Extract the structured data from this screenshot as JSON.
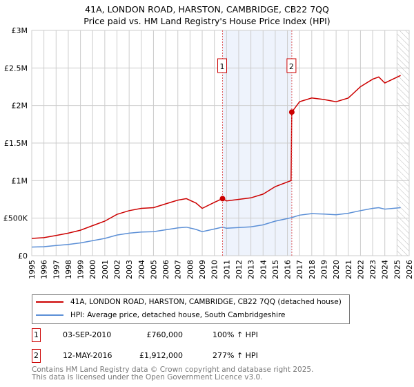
{
  "chart_data": {
    "type": "line",
    "title": "41A, LONDON ROAD, HARSTON, CAMBRIDGE, CB22 7QQ",
    "subtitle": "Price paid vs. HM Land Registry's House Price Index (HPI)",
    "xlim": [
      1995,
      2026
    ],
    "ylim": [
      0,
      3000000
    ],
    "x_ticks": [
      "1995",
      "1996",
      "1997",
      "1998",
      "1999",
      "2000",
      "2001",
      "2002",
      "2003",
      "2004",
      "2005",
      "2006",
      "2007",
      "2008",
      "2009",
      "2010",
      "2011",
      "2012",
      "2013",
      "2014",
      "2015",
      "2016",
      "2017",
      "2018",
      "2019",
      "2020",
      "2021",
      "2022",
      "2023",
      "2024",
      "2025",
      "2026"
    ],
    "y_ticks": [
      {
        "v": 0,
        "label": "£0"
      },
      {
        "v": 500000,
        "label": "£500K"
      },
      {
        "v": 1000000,
        "label": "£1M"
      },
      {
        "v": 1500000,
        "label": "£1.5M"
      },
      {
        "v": 2000000,
        "label": "£2M"
      },
      {
        "v": 2500000,
        "label": "£2.5M"
      },
      {
        "v": 3000000,
        "label": "£3M"
      }
    ],
    "grid": true,
    "shaded_range": [
      2010.67,
      2016.36
    ],
    "hatched_from": 2025.0,
    "series": [
      {
        "name": "41A, LONDON ROAD, HARSTON, CAMBRIDGE, CB22 7QQ (detached house)",
        "color": "#cc0000",
        "x": [
          1995,
          1996,
          1997,
          1998,
          1999,
          2000,
          2001,
          2002,
          2003,
          2004,
          2005,
          2006,
          2007,
          2007.7,
          2008.5,
          2009,
          2010,
          2010.67,
          2011,
          2012,
          2013,
          2014,
          2015,
          2016.3,
          2016.36,
          2017,
          2018,
          2019,
          2020,
          2021,
          2022,
          2023,
          2023.5,
          2024,
          2025.3
        ],
        "y": [
          230000,
          240000,
          270000,
          300000,
          340000,
          400000,
          460000,
          550000,
          600000,
          630000,
          640000,
          690000,
          740000,
          760000,
          700000,
          630000,
          710000,
          760000,
          730000,
          750000,
          770000,
          820000,
          920000,
          1000000,
          1912000,
          2050000,
          2100000,
          2080000,
          2050000,
          2100000,
          2250000,
          2350000,
          2380000,
          2300000,
          2400000
        ]
      },
      {
        "name": "HPI: Average price, detached house, South Cambridgeshire",
        "color": "#5b8fd6",
        "x": [
          1995,
          1996,
          1997,
          1998,
          1999,
          2000,
          2001,
          2002,
          2003,
          2004,
          2005,
          2006,
          2007,
          2007.7,
          2008.5,
          2009,
          2010,
          2010.67,
          2011,
          2012,
          2013,
          2014,
          2015,
          2016.3,
          2017,
          2018,
          2019,
          2020,
          2021,
          2022,
          2023,
          2023.5,
          2024,
          2025.3
        ],
        "y": [
          115000,
          120000,
          135000,
          150000,
          170000,
          200000,
          230000,
          275000,
          300000,
          315000,
          320000,
          345000,
          370000,
          380000,
          350000,
          320000,
          355000,
          380000,
          365000,
          375000,
          385000,
          410000,
          460000,
          505000,
          540000,
          560000,
          555000,
          545000,
          565000,
          600000,
          630000,
          640000,
          620000,
          640000
        ]
      }
    ],
    "sales": [
      {
        "num": "1",
        "x": 2010.67,
        "y": 760000,
        "date": "03-SEP-2010",
        "price": "£760,000",
        "hpi": "100% ↑ HPI"
      },
      {
        "num": "2",
        "x": 2016.36,
        "y": 1912000,
        "date": "12-MAY-2016",
        "price": "£1,912,000",
        "hpi": "277% ↑ HPI"
      }
    ]
  },
  "footer": {
    "line1": "Contains HM Land Registry data © Crown copyright and database right 2025.",
    "line2": "This data is licensed under the Open Government Licence v3.0."
  }
}
